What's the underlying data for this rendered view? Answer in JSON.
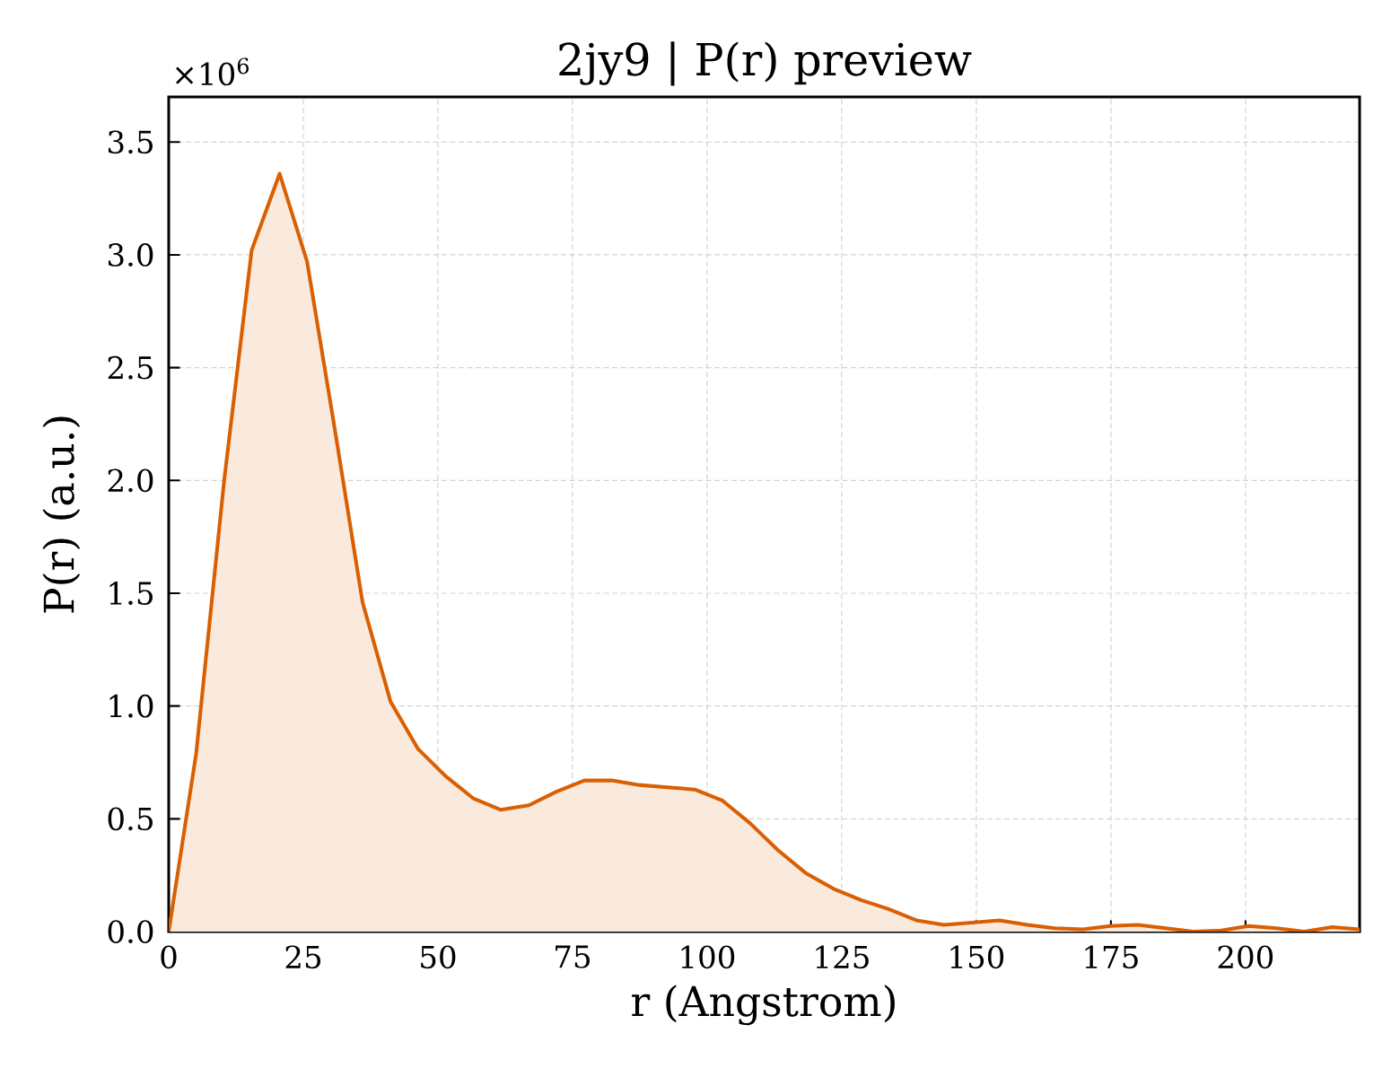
{
  "chart_data": {
    "type": "area",
    "title": "2jy9 | P(r) preview",
    "xlabel": "r (Angstrom)",
    "ylabel": "P(r) (a.u.)",
    "annotations": [
      "×10$^{6}$"
    ],
    "x": [
      0,
      5.1,
      10.3,
      15.4,
      20.6,
      25.7,
      30.9,
      36.0,
      41.2,
      46.3,
      51.4,
      56.6,
      61.7,
      66.9,
      72.0,
      77.2,
      82.3,
      87.4,
      92.6,
      97.7,
      102.9,
      108.0,
      113.2,
      118.3,
      123.5,
      128.6,
      133.7,
      138.9,
      144.0,
      149.2,
      154.3,
      159.5,
      164.6,
      169.8,
      174.9,
      180.0,
      185.2,
      190.3,
      195.5,
      200.6,
      205.8,
      210.9,
      216.1,
      221.2
    ],
    "values": [
      0,
      0.79,
      2.0,
      3.02,
      3.36,
      2.97,
      2.22,
      1.46,
      1.02,
      0.81,
      0.69,
      0.59,
      0.54,
      0.56,
      0.62,
      0.67,
      0.67,
      0.65,
      0.64,
      0.63,
      0.58,
      0.48,
      0.36,
      0.26,
      0.19,
      0.14,
      0.1,
      0.05,
      0.03,
      0.04,
      0.05,
      0.03,
      0.015,
      0.01,
      0.025,
      0.03,
      0.015,
      0,
      0.005,
      0.025,
      0.015,
      0,
      0.02,
      0.01
    ],
    "color": "#d95f02",
    "xlim": [
      0,
      221.2
    ],
    "ylim": [
      0,
      3.7
    ],
    "xticks": [
      0,
      25,
      50,
      75,
      100,
      125,
      150,
      175,
      200
    ],
    "yticks": [
      {
        "value": 0,
        "label": "0.0"
      },
      0.5,
      {
        "value": 1,
        "label": "1.0"
      },
      1.5,
      {
        "value": 2,
        "label": "2.0"
      },
      2.5,
      {
        "value": 3,
        "label": "3.0"
      },
      3.5
    ],
    "grid": true
  }
}
